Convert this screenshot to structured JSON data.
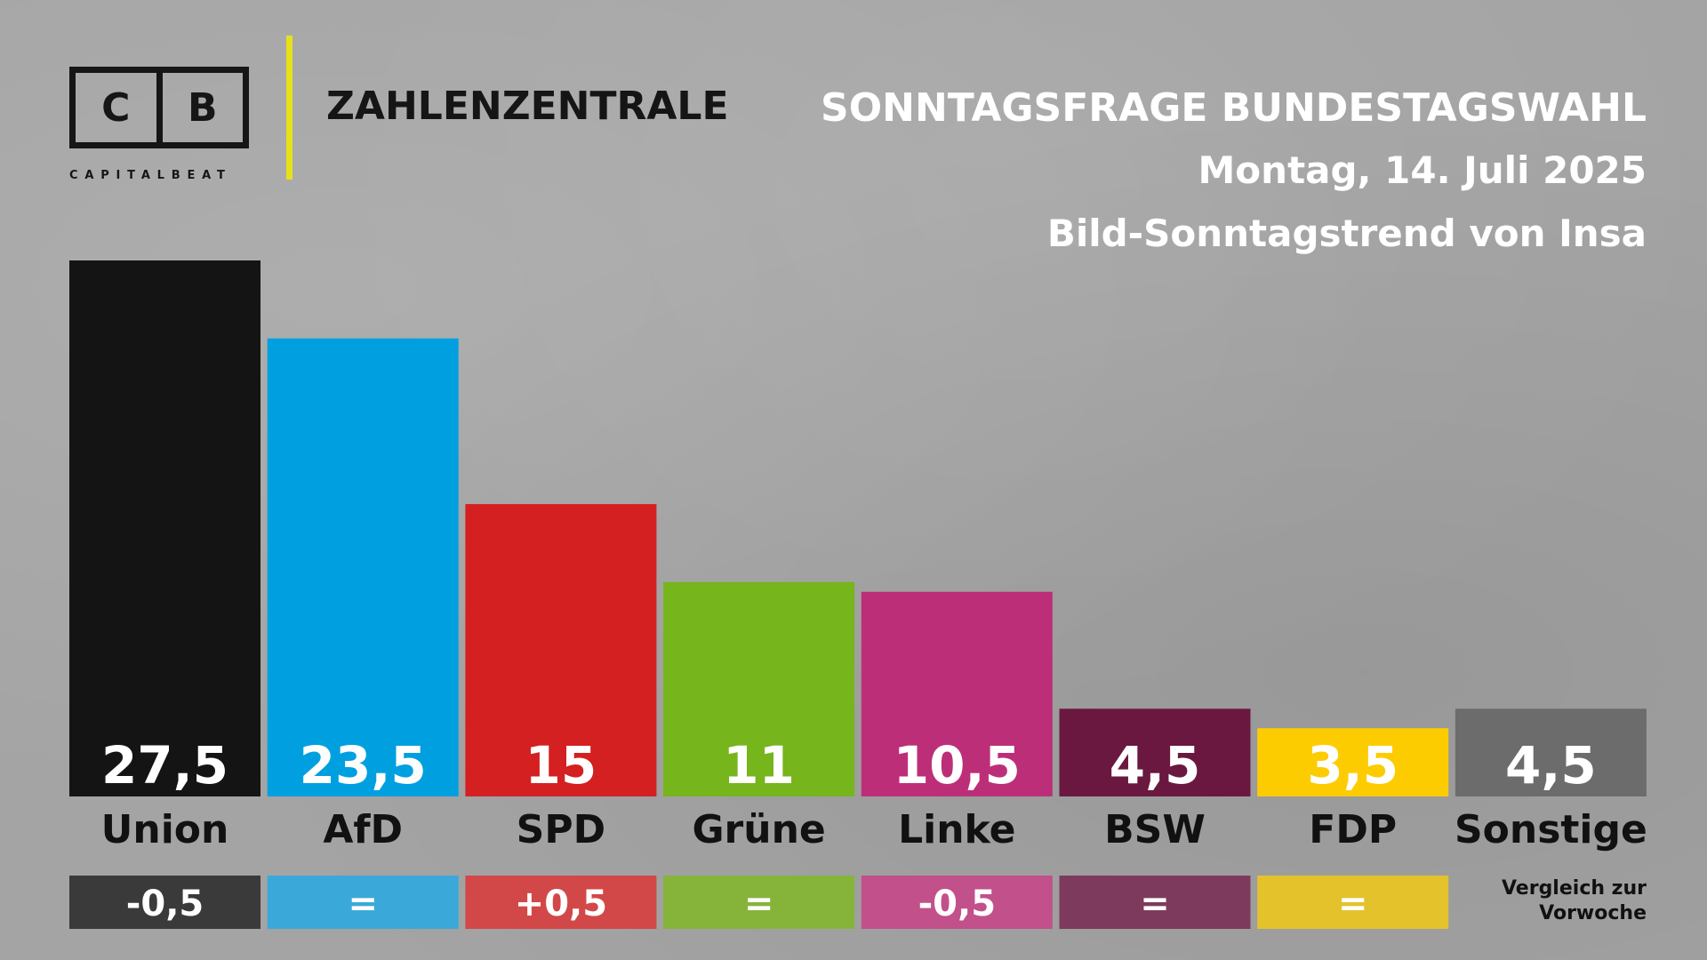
{
  "brand": {
    "logo_left": "C",
    "logo_right": "B",
    "logo_sub": "CAPITALBEAT",
    "name": "ZAHLENZENTRALE",
    "accent_color": "#e6e11a"
  },
  "header": {
    "title": "SONNTAGSFRAGE BUNDESTAGSWAHL",
    "date": "Montag, 14. Juli 2025",
    "source": "Bild-Sonntagstrend von Insa"
  },
  "comparison_note": [
    "Vergleich zur",
    "Vorwoche"
  ],
  "chart_data": {
    "type": "bar",
    "categories": [
      "Union",
      "AfD",
      "SPD",
      "Grüne",
      "Linke",
      "BSW",
      "FDP",
      "Sonstige"
    ],
    "values": [
      27.5,
      23.5,
      15,
      11,
      10.5,
      4.5,
      3.5,
      4.5
    ],
    "value_labels": [
      "27,5",
      "23,5",
      "15",
      "11",
      "10,5",
      "4,5",
      "3,5",
      "4,5"
    ],
    "colors": [
      "#141414",
      "#00a0e0",
      "#d42020",
      "#76b51c",
      "#bc2f78",
      "#6a1840",
      "#fdcc00",
      "#6c6c6c"
    ],
    "changes": [
      "-0,5",
      "=",
      "+0,5",
      "=",
      "-0,5",
      "=",
      "="
    ],
    "change_colors": [
      "#3a3a3a",
      "#3aa9d9",
      "#d24848",
      "#86b43a",
      "#c2508a",
      "#7e3a5c",
      "#e3c22c"
    ],
    "ylim": [
      0,
      27.5
    ],
    "grid": false,
    "legend": "none"
  }
}
